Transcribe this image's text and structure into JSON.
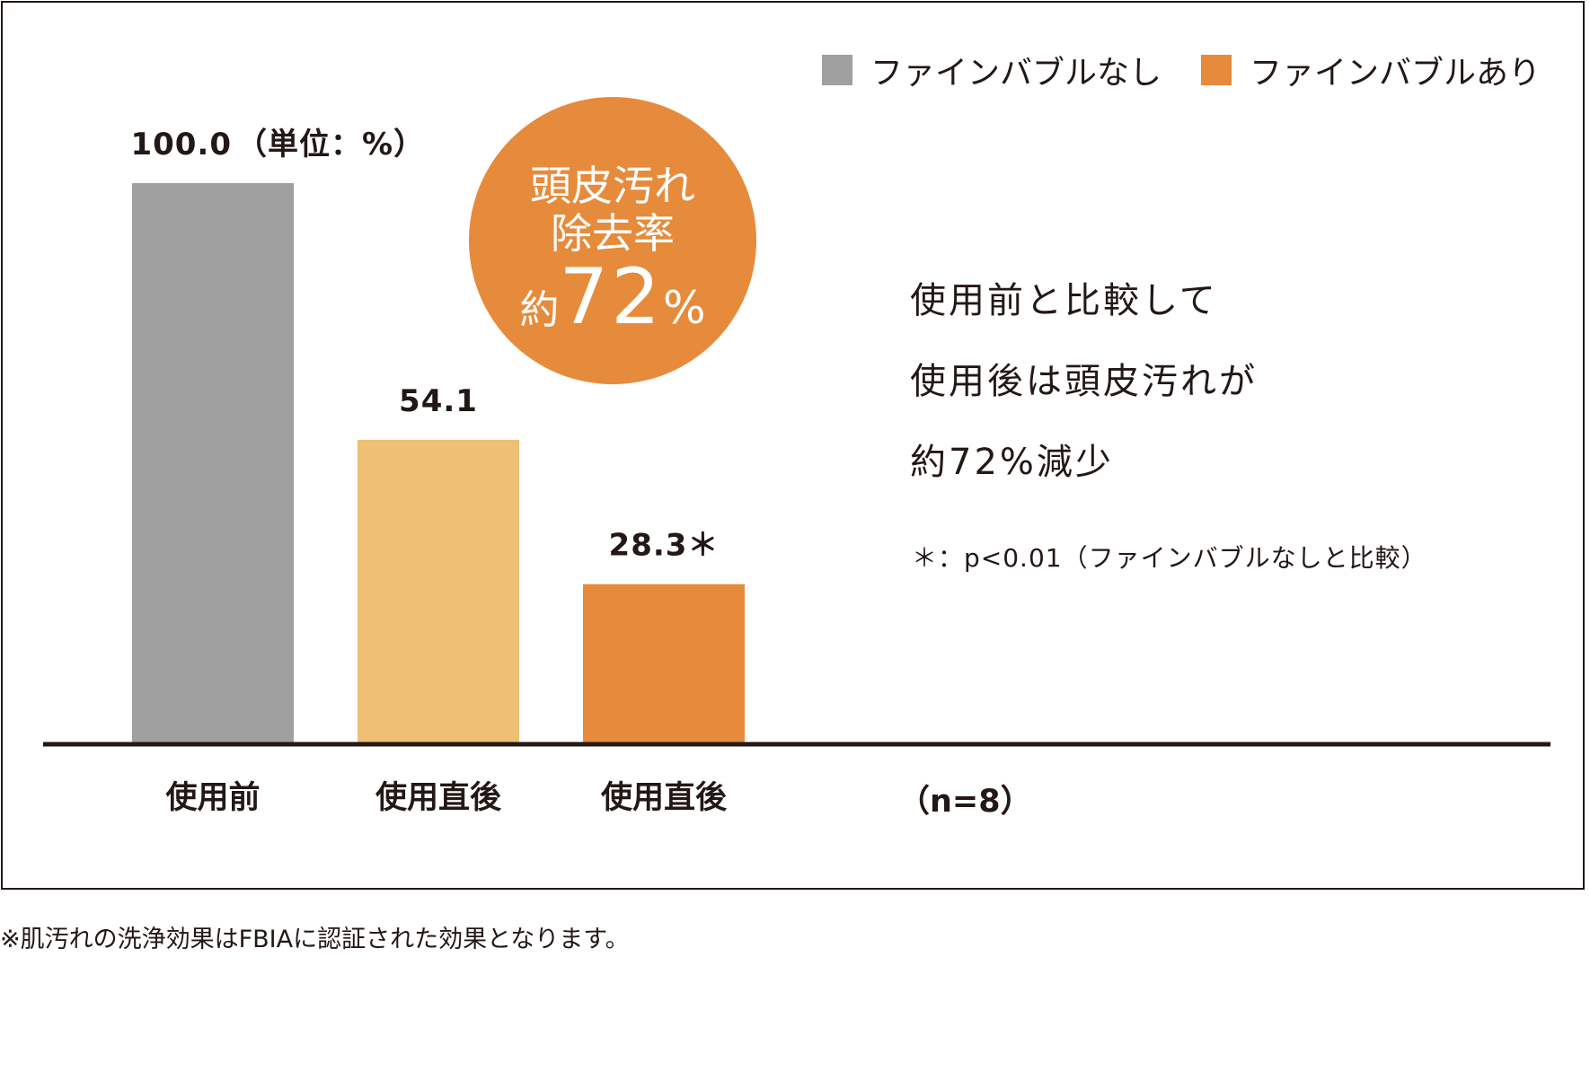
{
  "legend": {
    "without": {
      "label": "ファインバブルなし",
      "color": "#a0a0a0"
    },
    "with": {
      "label": "ファインバブルあり",
      "color": "#e68b3b"
    }
  },
  "badge": {
    "line1": "頭皮汚れ",
    "line2": "除去率",
    "prefix": "約",
    "number": "72",
    "percent": "%"
  },
  "summary": {
    "line1": "使用前と比較して",
    "line2": "使用後は頭皮汚れが",
    "line3": "約72%減少"
  },
  "significance_note": "＊：p<0.01（ファインバブルなしと比較）",
  "sample_size": "（n=8）",
  "footnote": "※肌汚れの洗浄効果はFBIAに認証された効果となります。",
  "chart_data": {
    "type": "bar",
    "title": "",
    "unit_label": "（単位：%）",
    "categories": [
      "使用前",
      "使用直後",
      "使用直後"
    ],
    "values": [
      100.0,
      54.1,
      28.3
    ],
    "value_labels": [
      "100.0",
      "54.1",
      "28.3＊"
    ],
    "colors": [
      "#a0a0a0",
      "#eebf74",
      "#e68b3b"
    ],
    "ylim": [
      0,
      100
    ],
    "xlabel": "",
    "ylabel": "",
    "grid": false,
    "legend_position": "top-right"
  }
}
